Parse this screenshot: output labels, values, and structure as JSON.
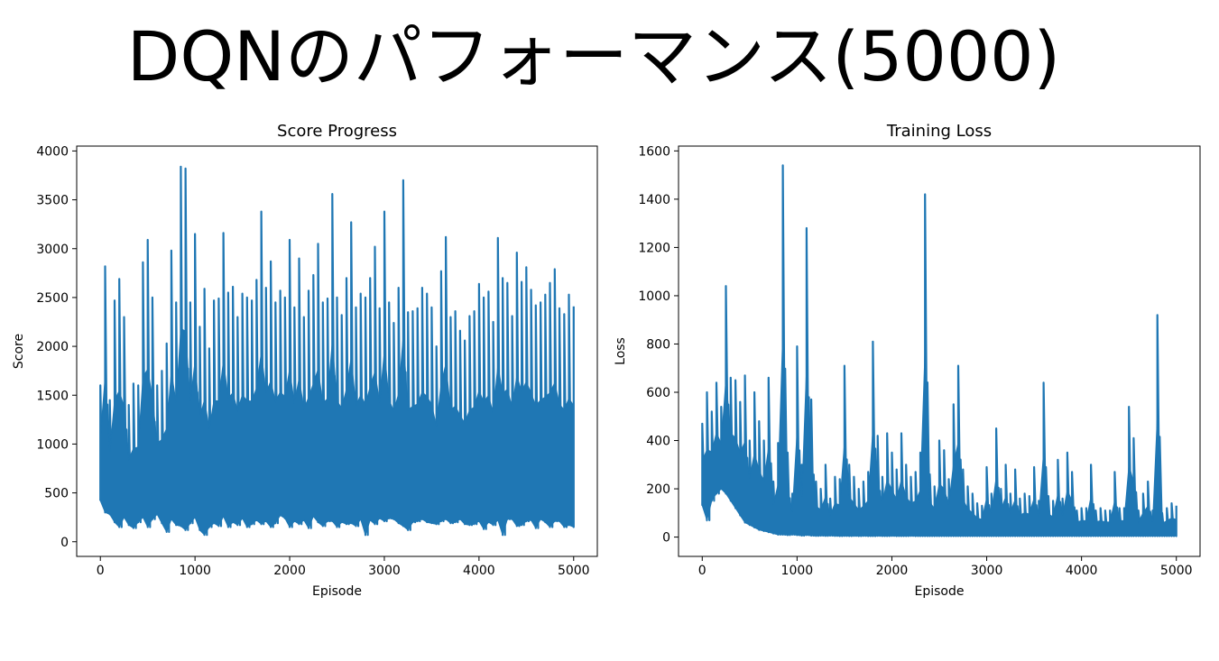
{
  "slide": {
    "title": "DQNのパフォーマンス(5000)"
  },
  "chart_data": [
    {
      "type": "line",
      "title": "Score Progress",
      "xlabel": "Episode",
      "ylabel": "Score",
      "xlim": [
        -250,
        5250
      ],
      "ylim": [
        -150,
        4050
      ],
      "xticks": [
        0,
        1000,
        2000,
        3000,
        4000,
        5000
      ],
      "yticks": [
        0,
        500,
        1000,
        1500,
        2000,
        2500,
        3000,
        3500,
        4000
      ],
      "grid": false,
      "legend": "none",
      "color": "#1f77b4",
      "series": [
        {
          "x": [
            0,
            50,
            100,
            150,
            200,
            250,
            300,
            350,
            400,
            450,
            500,
            550,
            600,
            650,
            700,
            750,
            800,
            850,
            900,
            950,
            1000,
            1050,
            1100,
            1150,
            1200,
            1250,
            1300,
            1350,
            1400,
            1450,
            1500,
            1550,
            1600,
            1650,
            1700,
            1750,
            1800,
            1850,
            1900,
            1950,
            2000,
            2050,
            2100,
            2150,
            2200,
            2250,
            2300,
            2350,
            2400,
            2450,
            2500,
            2550,
            2600,
            2650,
            2700,
            2750,
            2800,
            2850,
            2900,
            2950,
            3000,
            3050,
            3100,
            3150,
            3200,
            3250,
            3300,
            3350,
            3400,
            3450,
            3500,
            3550,
            3600,
            3650,
            3700,
            3750,
            3800,
            3850,
            3900,
            3950,
            4000,
            4050,
            4100,
            4150,
            4200,
            4250,
            4300,
            4350,
            4400,
            4450,
            4500,
            4550,
            4600,
            4650,
            4700,
            4750,
            4800,
            4850,
            4900,
            4950,
            5000
          ],
          "min": [
            420,
            300,
            280,
            200,
            150,
            250,
            170,
            140,
            200,
            250,
            150,
            230,
            280,
            190,
            100,
            230,
            170,
            160,
            120,
            190,
            250,
            120,
            70,
            150,
            190,
            160,
            260,
            150,
            200,
            170,
            240,
            150,
            180,
            220,
            180,
            210,
            150,
            190,
            270,
            240,
            150,
            210,
            180,
            220,
            140,
            260,
            200,
            160,
            210,
            210,
            150,
            200,
            180,
            190,
            160,
            230,
            70,
            220,
            180,
            240,
            210,
            240,
            230,
            190,
            160,
            120,
            200,
            210,
            230,
            200,
            190,
            180,
            210,
            230,
            190,
            200,
            230,
            180,
            170,
            180,
            210,
            130,
            200,
            170,
            220,
            70,
            230,
            230,
            160,
            170,
            210,
            220,
            140,
            230,
            200,
            150,
            210,
            210,
            150,
            170,
            150
          ],
          "max": [
            1600,
            2820,
            1450,
            2470,
            2690,
            2300,
            1400,
            1620,
            1600,
            2860,
            3090,
            2500,
            1600,
            1750,
            2030,
            2980,
            2450,
            3840,
            3820,
            2450,
            3150,
            2200,
            2590,
            1980,
            2470,
            2490,
            3160,
            2550,
            2610,
            2300,
            2540,
            2500,
            2470,
            2680,
            3380,
            2600,
            2870,
            2450,
            2570,
            2500,
            3090,
            2400,
            2900,
            2300,
            2570,
            2730,
            3050,
            2450,
            2490,
            3560,
            2500,
            2320,
            2700,
            3270,
            2400,
            2540,
            2500,
            2700,
            3020,
            2390,
            3380,
            2450,
            2240,
            2600,
            3700,
            2350,
            2360,
            2390,
            2600,
            2540,
            2400,
            2000,
            2770,
            3120,
            2300,
            2360,
            2160,
            2060,
            2310,
            2360,
            2640,
            2500,
            2560,
            2250,
            3110,
            2700,
            2650,
            2310,
            2960,
            2660,
            2810,
            2580,
            2420,
            2450,
            2530,
            2650,
            2790,
            2390,
            2330,
            2530,
            2410
          ]
        }
      ]
    },
    {
      "type": "line",
      "title": "Training Loss",
      "xlabel": "Episode",
      "ylabel": "Loss",
      "xlim": [
        -250,
        5250
      ],
      "ylim": [
        -80,
        1620
      ],
      "xticks": [
        0,
        1000,
        2000,
        3000,
        4000,
        5000
      ],
      "yticks": [
        0,
        200,
        400,
        600,
        800,
        1000,
        1200,
        1400,
        1600
      ],
      "grid": false,
      "legend": "none",
      "color": "#1f77b4",
      "series": [
        {
          "x": [
            0,
            50,
            100,
            150,
            200,
            250,
            300,
            350,
            400,
            450,
            500,
            550,
            600,
            650,
            700,
            750,
            800,
            850,
            900,
            950,
            1000,
            1050,
            1100,
            1150,
            1200,
            1250,
            1300,
            1350,
            1400,
            1450,
            1500,
            1550,
            1600,
            1650,
            1700,
            1750,
            1800,
            1850,
            1900,
            1950,
            2000,
            2050,
            2100,
            2150,
            2200,
            2250,
            2300,
            2350,
            2400,
            2450,
            2500,
            2550,
            2600,
            2650,
            2700,
            2750,
            2800,
            2850,
            2900,
            2950,
            3000,
            3050,
            3100,
            3150,
            3200,
            3250,
            3300,
            3350,
            3400,
            3450,
            3500,
            3550,
            3600,
            3650,
            3700,
            3750,
            3800,
            3850,
            3900,
            3950,
            4000,
            4050,
            4100,
            4150,
            4200,
            4250,
            4300,
            4350,
            4400,
            4450,
            4500,
            4550,
            4600,
            4650,
            4700,
            4750,
            4800,
            4850,
            4900,
            4950,
            5000
          ],
          "min": [
            130,
            70,
            150,
            180,
            200,
            180,
            150,
            120,
            90,
            60,
            50,
            40,
            30,
            25,
            20,
            15,
            10,
            10,
            8,
            10,
            8,
            6,
            8,
            6,
            5,
            6,
            5,
            6,
            5,
            4,
            5,
            4,
            5,
            4,
            5,
            4,
            4,
            5,
            4,
            4,
            5,
            4,
            4,
            4,
            5,
            4,
            4,
            4,
            4,
            4,
            4,
            4,
            4,
            4,
            4,
            4,
            4,
            4,
            4,
            4,
            4,
            4,
            4,
            4,
            4,
            4,
            4,
            4,
            4,
            4,
            4,
            4,
            4,
            4,
            4,
            4,
            4,
            4,
            4,
            4,
            4,
            4,
            4,
            4,
            4,
            4,
            4,
            4,
            4,
            4,
            4,
            4,
            4,
            4,
            4,
            4,
            4,
            4,
            4,
            4,
            4
          ],
          "max": [
            470,
            600,
            520,
            640,
            540,
            1040,
            660,
            650,
            560,
            670,
            400,
            600,
            480,
            400,
            660,
            230,
            390,
            1540,
            350,
            180,
            790,
            300,
            1280,
            570,
            230,
            200,
            300,
            160,
            250,
            240,
            710,
            300,
            250,
            200,
            230,
            270,
            810,
            420,
            250,
            430,
            350,
            280,
            430,
            300,
            250,
            270,
            350,
            1420,
            260,
            210,
            400,
            360,
            240,
            550,
            710,
            280,
            210,
            180,
            140,
            130,
            290,
            180,
            450,
            200,
            300,
            180,
            280,
            160,
            180,
            170,
            290,
            150,
            640,
            170,
            150,
            320,
            160,
            350,
            270,
            110,
            120,
            120,
            300,
            110,
            120,
            110,
            110,
            270,
            120,
            120,
            540,
            410,
            110,
            180,
            230,
            110,
            920,
            100,
            120,
            140,
            130
          ]
        }
      ]
    }
  ]
}
